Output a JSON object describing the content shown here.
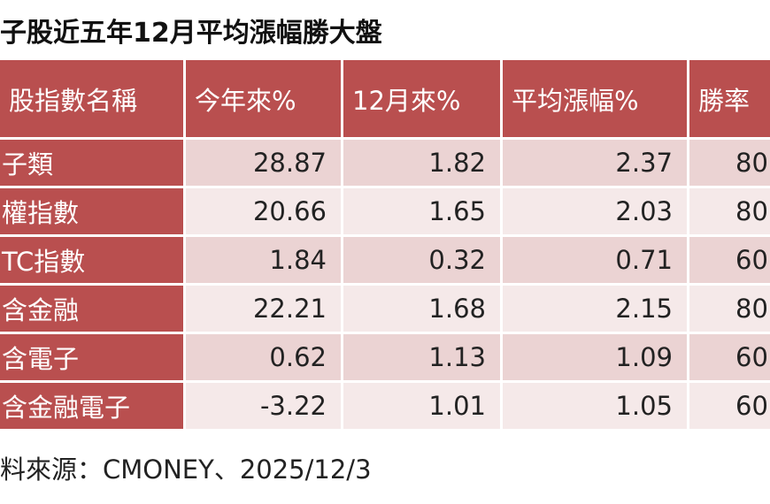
{
  "title": "子股近五年12月平均漲幅勝大盤",
  "table": {
    "header": [
      "股指數名稱",
      "今年來%",
      "12月來%",
      "平均漲幅%",
      "勝率"
    ],
    "rows": [
      [
        "子類",
        28.87,
        1.82,
        2.37,
        80
      ],
      [
        "權指數",
        20.66,
        1.65,
        2.03,
        80
      ],
      [
        "TC指數",
        1.84,
        0.32,
        0.71,
        60
      ],
      [
        "含金融",
        22.21,
        1.68,
        2.15,
        80
      ],
      [
        "含電子",
        0.62,
        1.13,
        1.09,
        60
      ],
      [
        "含金融電子",
        -3.22,
        1.01,
        1.05,
        60
      ]
    ]
  },
  "source": "料來源：CMONEY、2025/12/3"
}
